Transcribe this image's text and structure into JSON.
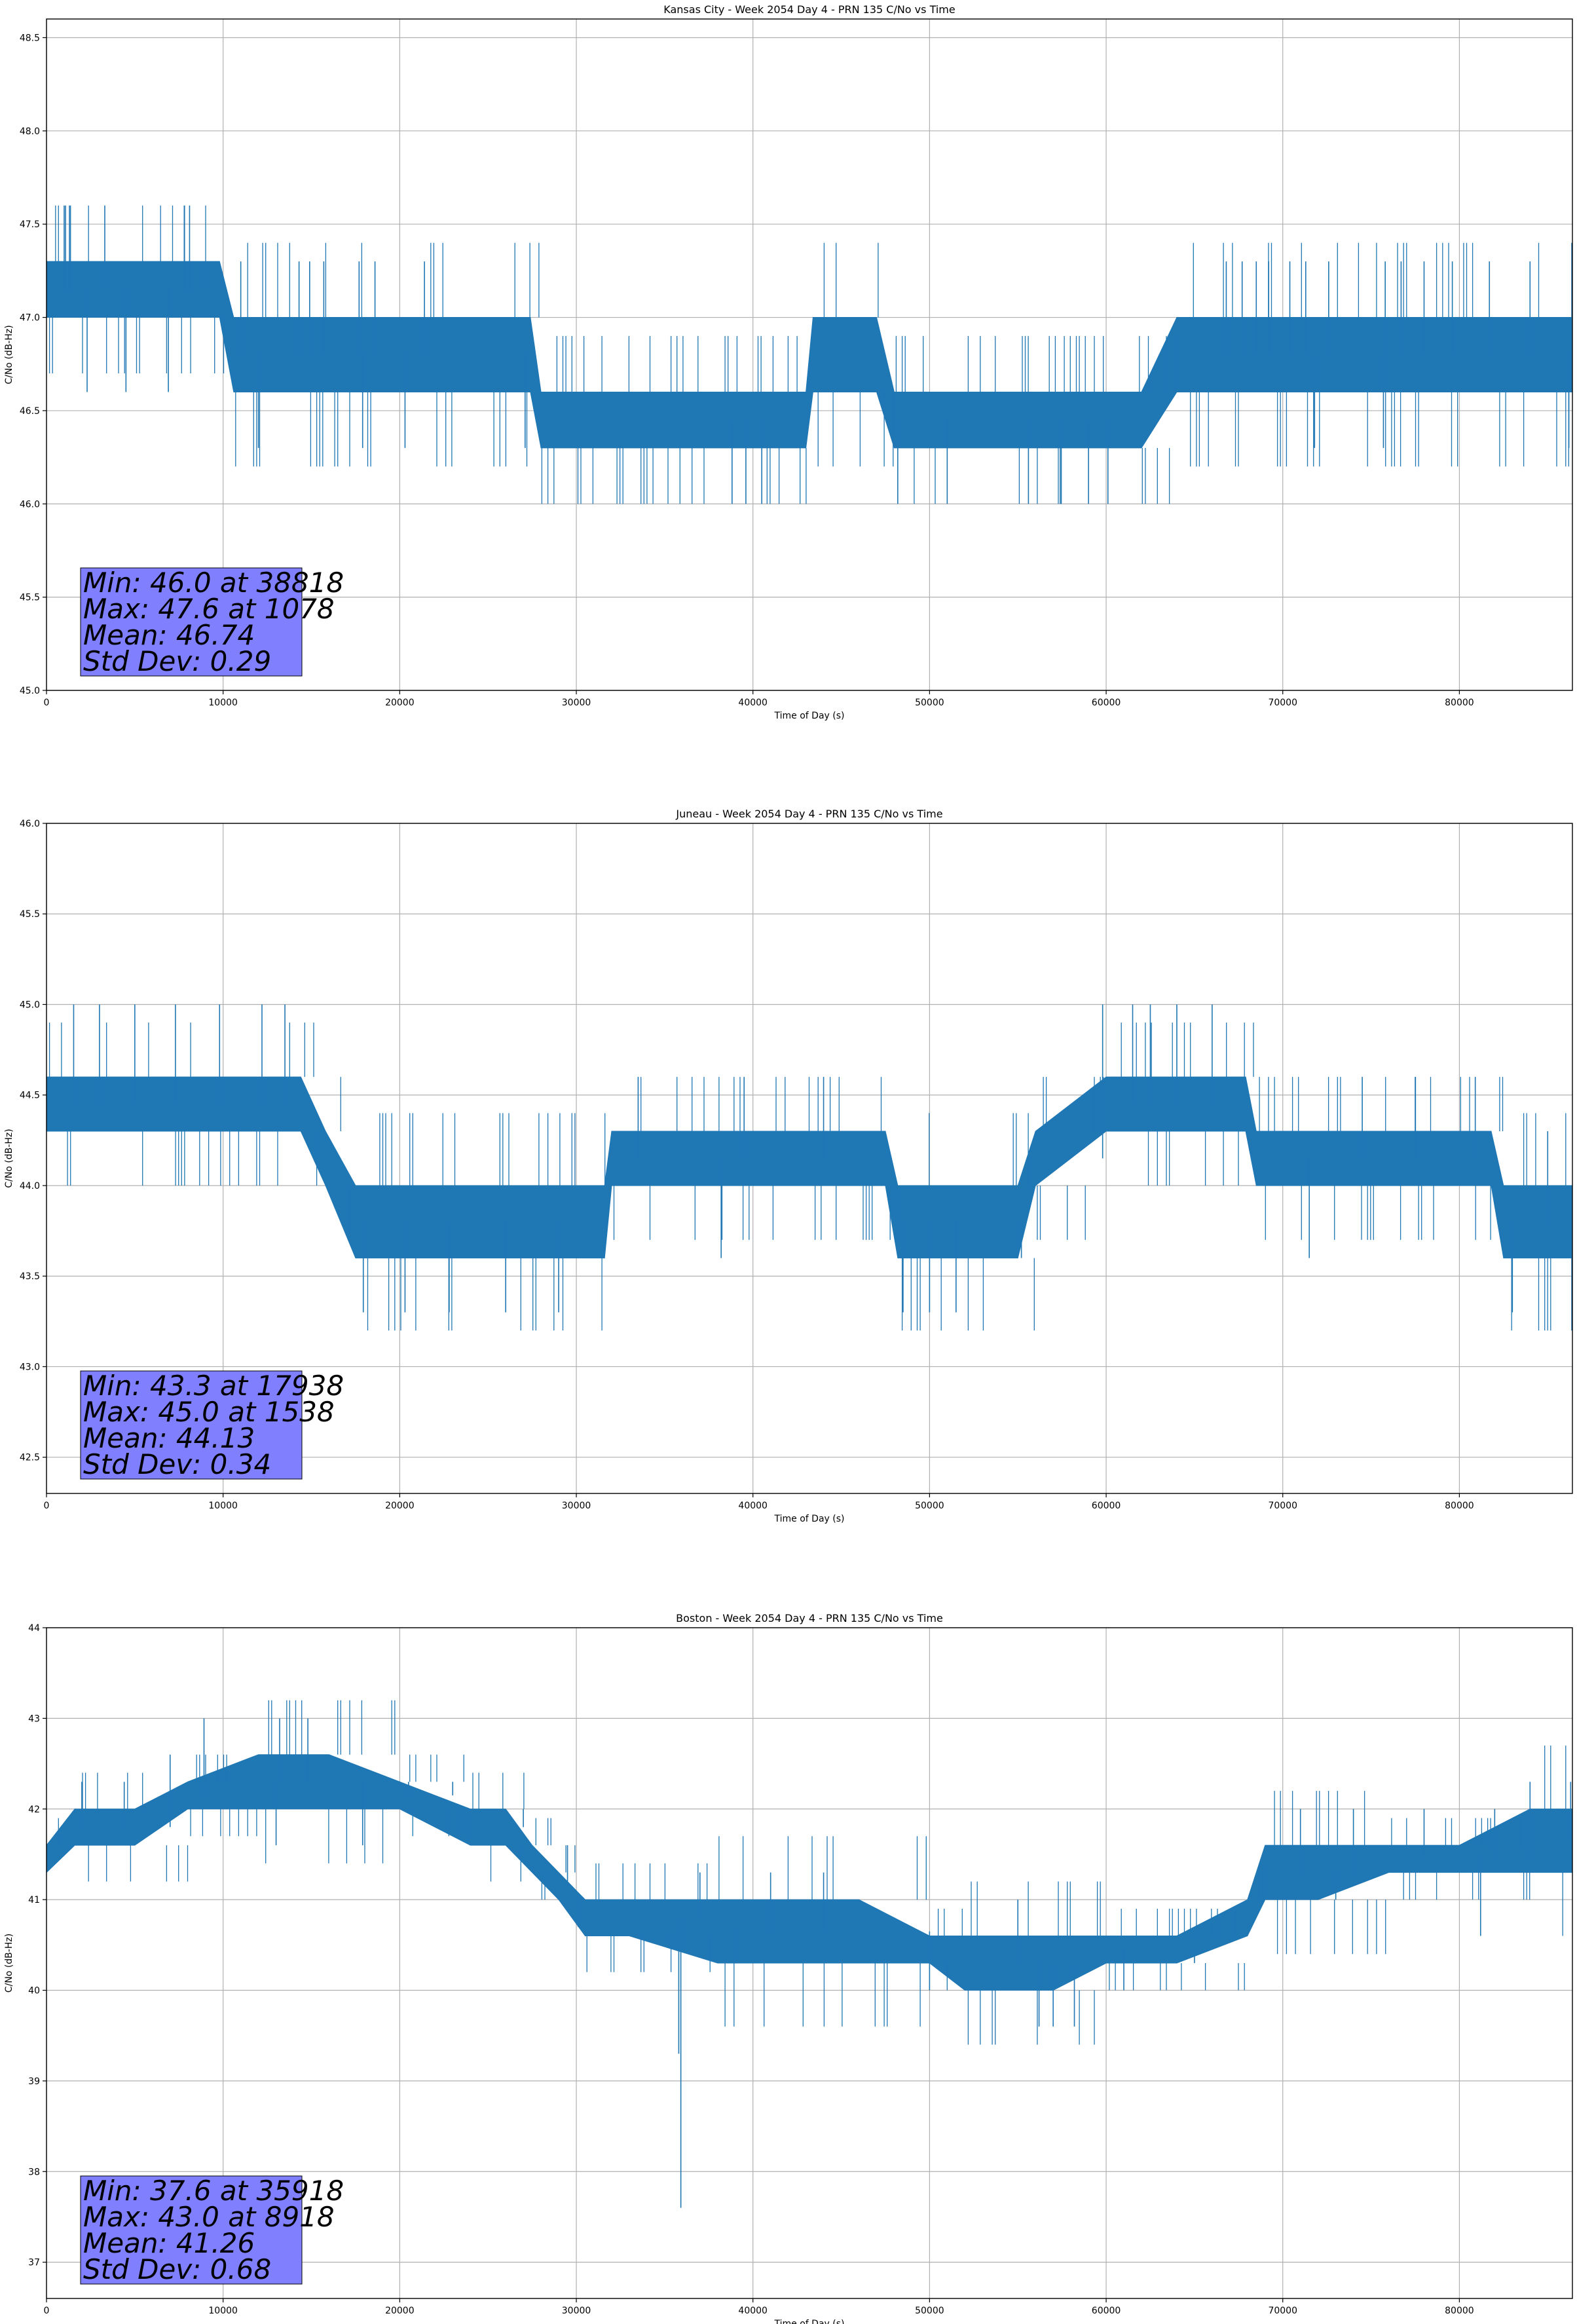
{
  "chart_data": [
    {
      "type": "line",
      "title": "Kansas City - Week 2054 Day 4 - PRN 135 C/No vs Time",
      "xlabel": "Time of Day (s)",
      "ylabel": "C/No (dB-Hz)",
      "xlim": [
        0,
        86400
      ],
      "ylim": [
        45.0,
        48.6
      ],
      "xticks": [
        0,
        10000,
        20000,
        30000,
        40000,
        50000,
        60000,
        70000,
        80000
      ],
      "yticks": [
        45.0,
        45.5,
        46.0,
        46.5,
        47.0,
        47.5,
        48.0,
        48.5
      ],
      "ytick_decimals": 1,
      "grid": true,
      "series_color": "#1f77b4",
      "series": [
        {
          "name": "C/No",
          "x": [
            0,
            2000,
            4000,
            6000,
            8000,
            9800,
            10600,
            14000,
            18000,
            22000,
            26000,
            27400,
            28000,
            32000,
            36000,
            40000,
            43000,
            43400,
            47000,
            48000,
            52000,
            56000,
            60000,
            62000,
            64000,
            66000,
            70000,
            74000,
            78000,
            82000,
            86400
          ],
          "baseline": [
            47.0,
            47.0,
            47.0,
            47.0,
            47.0,
            47.0,
            46.6,
            46.6,
            46.6,
            46.6,
            46.6,
            46.6,
            46.3,
            46.3,
            46.3,
            46.3,
            46.3,
            46.6,
            46.6,
            46.3,
            46.3,
            46.3,
            46.3,
            46.3,
            46.6,
            46.6,
            46.6,
            46.6,
            46.6,
            46.6,
            46.6
          ],
          "top": [
            47.3,
            47.3,
            47.3,
            47.3,
            47.3,
            47.3,
            47.0,
            47.0,
            47.0,
            47.0,
            47.0,
            47.0,
            46.6,
            46.6,
            46.6,
            46.6,
            46.6,
            47.0,
            47.0,
            46.6,
            46.6,
            46.6,
            46.6,
            46.6,
            47.0,
            47.0,
            47.0,
            47.0,
            47.0,
            47.0,
            47.0
          ]
        }
      ],
      "spikes": [
        [
          1000,
          47.6
        ],
        [
          1078,
          47.6
        ],
        [
          1300,
          47.6
        ],
        [
          3300,
          47.6
        ],
        [
          7800,
          47.6
        ],
        [
          8100,
          47.6
        ],
        [
          8918,
          47.3
        ],
        [
          11000,
          47.3
        ],
        [
          14300,
          47.3
        ],
        [
          14900,
          47.3
        ],
        [
          15700,
          47.3
        ],
        [
          17700,
          47.3
        ],
        [
          18600,
          47.3
        ],
        [
          21400,
          47.3
        ],
        [
          66800,
          47.3
        ],
        [
          67700,
          47.3
        ],
        [
          68500,
          47.3
        ],
        [
          69200,
          47.3
        ],
        [
          70400,
          47.3
        ],
        [
          71300,
          47.3
        ],
        [
          72600,
          47.3
        ],
        [
          75800,
          47.3
        ],
        [
          76700,
          47.3
        ],
        [
          78000,
          47.3
        ],
        [
          79600,
          47.3
        ],
        [
          81700,
          47.3
        ],
        [
          84000,
          47.3
        ],
        [
          2300,
          46.6
        ],
        [
          4500,
          46.6
        ],
        [
          6900,
          46.6
        ],
        [
          12000,
          46.3
        ],
        [
          17900,
          46.3
        ],
        [
          20300,
          46.3
        ],
        [
          27100,
          46.3
        ],
        [
          38818,
          46.0
        ],
        [
          39600,
          46.0
        ],
        [
          40500,
          46.0
        ],
        [
          48200,
          46.0
        ],
        [
          51000,
          46.0
        ],
        [
          55600,
          46.0
        ],
        [
          57400,
          46.0
        ],
        [
          59000,
          46.0
        ],
        [
          60100,
          46.0
        ],
        [
          71800,
          46.3
        ],
        [
          75700,
          46.3
        ],
        [
          86200,
          46.3
        ]
      ],
      "annotation": [
        "Min: 46.0 at 38818",
        "Max: 47.6 at 1078",
        "Mean: 46.74",
        "Std Dev: 0.29"
      ]
    },
    {
      "type": "line",
      "title": "Juneau - Week 2054 Day 4 - PRN 135 C/No vs Time",
      "xlabel": "Time of Day (s)",
      "ylabel": "C/No (dB-Hz)",
      "xlim": [
        0,
        86400
      ],
      "ylim": [
        42.3,
        46.0
      ],
      "xticks": [
        0,
        10000,
        20000,
        30000,
        40000,
        50000,
        60000,
        70000,
        80000
      ],
      "yticks": [
        42.5,
        43.0,
        43.5,
        44.0,
        44.5,
        45.0,
        45.5,
        46.0
      ],
      "ytick_decimals": 1,
      "grid": true,
      "series_color": "#1f77b4",
      "series": [
        {
          "name": "C/No",
          "x": [
            0,
            4000,
            8000,
            12000,
            14400,
            15800,
            17500,
            20000,
            24000,
            28000,
            31600,
            32000,
            36000,
            40000,
            44000,
            47500,
            48200,
            52000,
            55000,
            56000,
            60000,
            64000,
            67900,
            68500,
            72000,
            76000,
            80000,
            81800,
            82500,
            86400
          ],
          "baseline": [
            44.3,
            44.3,
            44.3,
            44.3,
            44.3,
            44.0,
            43.6,
            43.6,
            43.6,
            43.6,
            43.6,
            44.0,
            44.0,
            44.0,
            44.0,
            44.0,
            43.6,
            43.6,
            43.6,
            44.0,
            44.3,
            44.3,
            44.3,
            44.0,
            44.0,
            44.0,
            44.0,
            44.0,
            43.6,
            43.6
          ],
          "top": [
            44.6,
            44.6,
            44.6,
            44.6,
            44.6,
            44.3,
            44.0,
            44.0,
            44.0,
            44.0,
            44.0,
            44.3,
            44.3,
            44.3,
            44.3,
            44.3,
            44.0,
            44.0,
            44.0,
            44.3,
            44.6,
            44.6,
            44.6,
            44.3,
            44.3,
            44.3,
            44.3,
            44.3,
            44.0,
            44.0
          ]
        }
      ],
      "spikes": [
        [
          1538,
          45.0
        ],
        [
          3000,
          45.0
        ],
        [
          5000,
          45.0
        ],
        [
          7300,
          45.0
        ],
        [
          9800,
          45.0
        ],
        [
          12200,
          45.0
        ],
        [
          13500,
          45.0
        ],
        [
          59800,
          45.0
        ],
        [
          61500,
          45.0
        ],
        [
          62500,
          45.0
        ],
        [
          64000,
          45.0
        ],
        [
          66000,
          45.0
        ],
        [
          33500,
          44.6
        ],
        [
          39500,
          44.6
        ],
        [
          44000,
          44.6
        ],
        [
          74500,
          44.6
        ],
        [
          77500,
          44.6
        ],
        [
          80900,
          44.6
        ],
        [
          85000,
          44.3
        ],
        [
          17938,
          43.3
        ],
        [
          20300,
          43.3
        ],
        [
          22800,
          43.3
        ],
        [
          26000,
          43.3
        ],
        [
          29000,
          43.3
        ],
        [
          38200,
          43.6
        ],
        [
          48500,
          43.3
        ],
        [
          50000,
          43.3
        ],
        [
          51500,
          43.3
        ],
        [
          55200,
          43.6
        ],
        [
          71500,
          43.6
        ],
        [
          83000,
          43.3
        ],
        [
          86400,
          43.3
        ]
      ],
      "annotation": [
        "Min: 43.3 at 17938",
        "Max: 45.0 at 1538",
        "Mean: 44.13",
        "Std Dev: 0.34"
      ]
    },
    {
      "type": "line",
      "title": "Boston - Week 2054 Day 4 - PRN 135 C/No vs Time",
      "xlabel": "Time of Day (s)",
      "ylabel": "C/No (dB-Hz)",
      "xlim": [
        0,
        86400
      ],
      "ylim": [
        36.6,
        44.0
      ],
      "xticks": [
        0,
        10000,
        20000,
        30000,
        40000,
        50000,
        60000,
        70000,
        80000
      ],
      "yticks": [
        37,
        38,
        39,
        40,
        41,
        42,
        43,
        44
      ],
      "ytick_decimals": 0,
      "grid": true,
      "series_color": "#1f77b4",
      "series": [
        {
          "name": "C/No",
          "x": [
            0,
            1600,
            5000,
            8000,
            12000,
            16000,
            20000,
            24000,
            26000,
            27500,
            29000,
            30500,
            33000,
            38000,
            42000,
            46000,
            50000,
            52000,
            55000,
            57000,
            60000,
            64000,
            68000,
            69000,
            72000,
            76000,
            80000,
            84000,
            86400
          ],
          "baseline": [
            41.3,
            41.6,
            41.6,
            42.0,
            42.0,
            42.0,
            42.0,
            41.6,
            41.6,
            41.3,
            41.0,
            40.6,
            40.6,
            40.3,
            40.3,
            40.3,
            40.3,
            40.0,
            40.0,
            40.0,
            40.3,
            40.3,
            40.6,
            41.0,
            41.0,
            41.3,
            41.3,
            41.3,
            41.3
          ],
          "top": [
            41.6,
            42.0,
            42.0,
            42.3,
            42.6,
            42.6,
            42.3,
            42.0,
            42.0,
            41.6,
            41.3,
            41.0,
            41.0,
            41.0,
            41.0,
            41.0,
            40.6,
            40.6,
            40.6,
            40.6,
            40.6,
            40.6,
            41.0,
            41.6,
            41.6,
            41.6,
            41.6,
            42.0,
            42.0
          ]
        }
      ],
      "spikes": [
        [
          8918,
          43.0
        ],
        [
          13200,
          43.0
        ],
        [
          14800,
          43.0
        ],
        [
          2000,
          42.3
        ],
        [
          4400,
          42.3
        ],
        [
          7000,
          42.6
        ],
        [
          20500,
          42.3
        ],
        [
          23000,
          42.3
        ],
        [
          27000,
          42.0
        ],
        [
          29500,
          41.6
        ],
        [
          37000,
          41.3
        ],
        [
          41000,
          41.3
        ],
        [
          44000,
          41.3
        ],
        [
          55000,
          41.0
        ],
        [
          71000,
          42.0
        ],
        [
          74000,
          42.0
        ],
        [
          78000,
          42.0
        ],
        [
          82000,
          42.0
        ],
        [
          84000,
          42.3
        ],
        [
          86300,
          42.3
        ],
        [
          13000,
          41.6
        ],
        [
          17900,
          41.6
        ],
        [
          35918,
          37.6
        ],
        [
          35800,
          39.3
        ],
        [
          39000,
          40.3
        ],
        [
          50000,
          40.0
        ],
        [
          57000,
          39.6
        ],
        [
          56200,
          39.6
        ],
        [
          58200,
          39.6
        ],
        [
          61000,
          40.0
        ],
        [
          65000,
          40.3
        ],
        [
          73000,
          41.0
        ],
        [
          81200,
          40.6
        ]
      ],
      "annotation": [
        "Min: 37.6 at 35918",
        "Max: 43.0 at 8918",
        "Mean: 41.26",
        "Std Dev: 0.68"
      ]
    }
  ]
}
